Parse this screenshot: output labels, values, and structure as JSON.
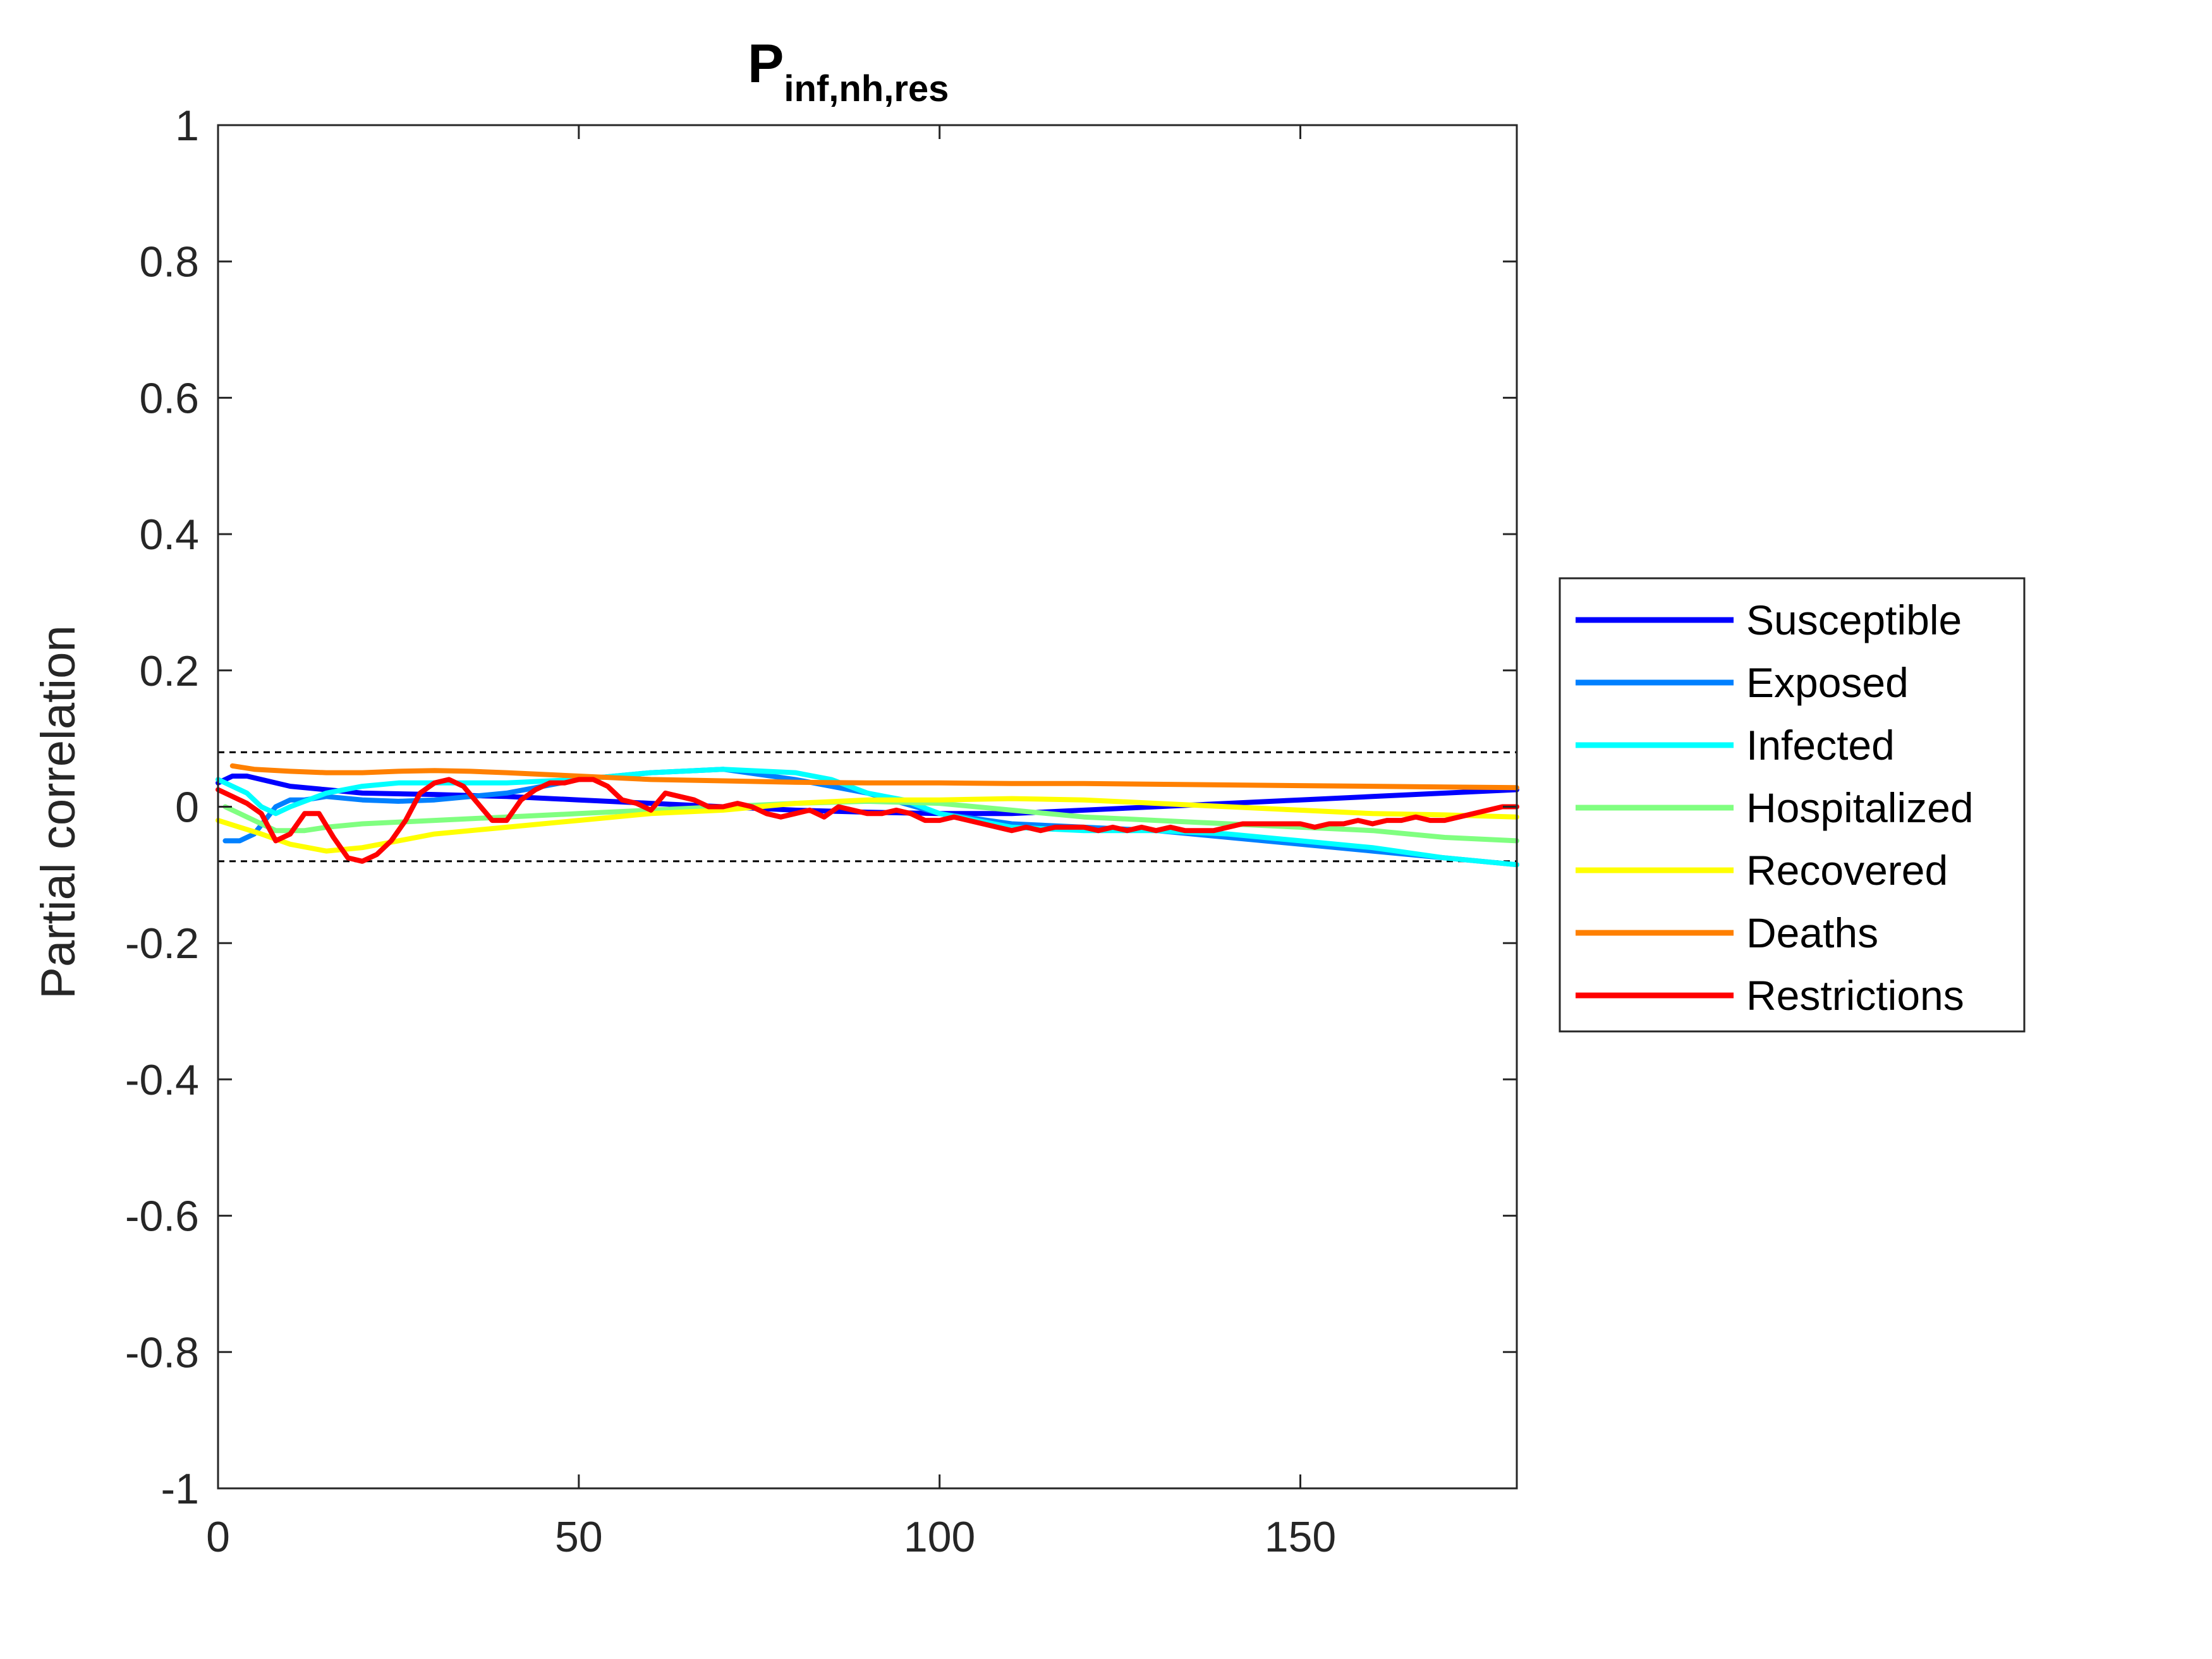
{
  "chart_data": {
    "type": "line",
    "title": "P",
    "title_subscript": "inf,nh,res",
    "xlabel": "",
    "ylabel": "Partial correlation",
    "xlim": [
      0,
      180
    ],
    "ylim": [
      -1,
      1
    ],
    "x_ticks": [
      "0",
      "50",
      "100",
      "150"
    ],
    "x_tick_values": [
      0,
      50,
      100,
      150
    ],
    "y_ticks": [
      "-1",
      "-0.8",
      "-0.6",
      "-0.4",
      "-0.2",
      "0",
      "0.2",
      "0.4",
      "0.6",
      "0.8",
      "1"
    ],
    "y_tick_values": [
      -1,
      -0.8,
      -0.6,
      -0.4,
      -0.2,
      0,
      0.2,
      0.4,
      0.6,
      0.8,
      1
    ],
    "reference_lines": [
      0.08,
      -0.08
    ],
    "grid": false,
    "legend_position": "right",
    "series": [
      {
        "name": "Susceptible",
        "color": "#0000ff",
        "points": [
          [
            0,
            0.035
          ],
          [
            2,
            0.045
          ],
          [
            4,
            0.045
          ],
          [
            6,
            0.04
          ],
          [
            10,
            0.03
          ],
          [
            15,
            0.025
          ],
          [
            20,
            0.02
          ],
          [
            30,
            0.018
          ],
          [
            40,
            0.015
          ],
          [
            50,
            0.01
          ],
          [
            60,
            0.005
          ],
          [
            70,
            0
          ],
          [
            80,
            -0.005
          ],
          [
            90,
            -0.008
          ],
          [
            100,
            -0.01
          ],
          [
            110,
            -0.01
          ],
          [
            120,
            -0.005
          ],
          [
            130,
            0
          ],
          [
            140,
            0.005
          ],
          [
            150,
            0.01
          ],
          [
            160,
            0.015
          ],
          [
            170,
            0.02
          ],
          [
            180,
            0.025
          ]
        ]
      },
      {
        "name": "Exposed",
        "color": "#0080ff",
        "points": [
          [
            1,
            -0.05
          ],
          [
            3,
            -0.05
          ],
          [
            5,
            -0.04
          ],
          [
            8,
            0
          ],
          [
            10,
            0.01
          ],
          [
            12,
            0.01
          ],
          [
            15,
            0.015
          ],
          [
            20,
            0.01
          ],
          [
            25,
            0.008
          ],
          [
            30,
            0.01
          ],
          [
            40,
            0.02
          ],
          [
            50,
            0.04
          ],
          [
            60,
            0.05
          ],
          [
            70,
            0.055
          ],
          [
            80,
            0.04
          ],
          [
            90,
            0.02
          ],
          [
            100,
            -0.01
          ],
          [
            110,
            -0.025
          ],
          [
            120,
            -0.03
          ],
          [
            130,
            -0.035
          ],
          [
            140,
            -0.045
          ],
          [
            150,
            -0.055
          ],
          [
            160,
            -0.065
          ],
          [
            170,
            -0.075
          ],
          [
            180,
            -0.085
          ]
        ]
      },
      {
        "name": "Infected",
        "color": "#00ffff",
        "points": [
          [
            0,
            0.04
          ],
          [
            2,
            0.03
          ],
          [
            4,
            0.02
          ],
          [
            6,
            0
          ],
          [
            8,
            -0.01
          ],
          [
            10,
            0
          ],
          [
            15,
            0.02
          ],
          [
            20,
            0.03
          ],
          [
            25,
            0.035
          ],
          [
            30,
            0.035
          ],
          [
            40,
            0.035
          ],
          [
            50,
            0.04
          ],
          [
            60,
            0.05
          ],
          [
            70,
            0.055
          ],
          [
            80,
            0.05
          ],
          [
            85,
            0.04
          ],
          [
            90,
            0.02
          ],
          [
            95,
            0.01
          ],
          [
            100,
            -0.01
          ],
          [
            110,
            -0.03
          ],
          [
            120,
            -0.035
          ],
          [
            130,
            -0.035
          ],
          [
            140,
            -0.04
          ],
          [
            150,
            -0.05
          ],
          [
            160,
            -0.06
          ],
          [
            170,
            -0.075
          ],
          [
            180,
            -0.085
          ]
        ]
      },
      {
        "name": "Hospitalized",
        "color": "#80ff80",
        "points": [
          [
            1,
            0
          ],
          [
            3,
            -0.01
          ],
          [
            5,
            -0.02
          ],
          [
            8,
            -0.035
          ],
          [
            12,
            -0.035
          ],
          [
            15,
            -0.03
          ],
          [
            20,
            -0.025
          ],
          [
            30,
            -0.02
          ],
          [
            40,
            -0.015
          ],
          [
            50,
            -0.01
          ],
          [
            60,
            -0.005
          ],
          [
            70,
            0
          ],
          [
            80,
            0.005
          ],
          [
            90,
            0.008
          ],
          [
            100,
            0.005
          ],
          [
            110,
            -0.005
          ],
          [
            120,
            -0.015
          ],
          [
            130,
            -0.02
          ],
          [
            140,
            -0.025
          ],
          [
            150,
            -0.03
          ],
          [
            160,
            -0.035
          ],
          [
            170,
            -0.045
          ],
          [
            180,
            -0.05
          ]
        ]
      },
      {
        "name": "Recovered",
        "color": "#ffff00",
        "points": [
          [
            0,
            -0.02
          ],
          [
            3,
            -0.03
          ],
          [
            6,
            -0.04
          ],
          [
            10,
            -0.055
          ],
          [
            15,
            -0.065
          ],
          [
            20,
            -0.06
          ],
          [
            25,
            -0.05
          ],
          [
            30,
            -0.04
          ],
          [
            40,
            -0.03
          ],
          [
            50,
            -0.02
          ],
          [
            60,
            -0.01
          ],
          [
            70,
            -0.005
          ],
          [
            80,
            0.005
          ],
          [
            90,
            0.01
          ],
          [
            100,
            0.01
          ],
          [
            110,
            0.012
          ],
          [
            120,
            0.01
          ],
          [
            130,
            0.005
          ],
          [
            140,
            0
          ],
          [
            150,
            -0.005
          ],
          [
            160,
            -0.01
          ],
          [
            170,
            -0.012
          ],
          [
            180,
            -0.015
          ]
        ]
      },
      {
        "name": "Deaths",
        "color": "#ff8000",
        "points": [
          [
            2,
            0.06
          ],
          [
            5,
            0.055
          ],
          [
            10,
            0.052
          ],
          [
            15,
            0.05
          ],
          [
            20,
            0.05
          ],
          [
            25,
            0.052
          ],
          [
            30,
            0.053
          ],
          [
            35,
            0.052
          ],
          [
            40,
            0.05
          ],
          [
            50,
            0.045
          ],
          [
            60,
            0.04
          ],
          [
            70,
            0.038
          ],
          [
            80,
            0.036
          ],
          [
            90,
            0.035
          ],
          [
            100,
            0.035
          ],
          [
            110,
            0.034
          ],
          [
            120,
            0.034
          ],
          [
            130,
            0.033
          ],
          [
            140,
            0.032
          ],
          [
            150,
            0.031
          ],
          [
            160,
            0.03
          ],
          [
            170,
            0.029
          ],
          [
            180,
            0.028
          ]
        ]
      },
      {
        "name": "Restrictions",
        "color": "#ff0000",
        "points": [
          [
            0,
            0.025
          ],
          [
            2,
            0.015
          ],
          [
            4,
            0.005
          ],
          [
            6,
            -0.01
          ],
          [
            8,
            -0.05
          ],
          [
            10,
            -0.04
          ],
          [
            12,
            -0.01
          ],
          [
            14,
            -0.01
          ],
          [
            16,
            -0.045
          ],
          [
            18,
            -0.075
          ],
          [
            20,
            -0.08
          ],
          [
            22,
            -0.07
          ],
          [
            24,
            -0.05
          ],
          [
            26,
            -0.02
          ],
          [
            28,
            0.02
          ],
          [
            30,
            0.035
          ],
          [
            32,
            0.04
          ],
          [
            34,
            0.03
          ],
          [
            36,
            0.005
          ],
          [
            38,
            -0.02
          ],
          [
            40,
            -0.02
          ],
          [
            42,
            0.01
          ],
          [
            44,
            0.025
          ],
          [
            46,
            0.035
          ],
          [
            48,
            0.035
          ],
          [
            50,
            0.04
          ],
          [
            52,
            0.04
          ],
          [
            54,
            0.03
          ],
          [
            56,
            0.01
          ],
          [
            58,
            0.005
          ],
          [
            60,
            -0.005
          ],
          [
            62,
            0.02
          ],
          [
            64,
            0.015
          ],
          [
            66,
            0.01
          ],
          [
            68,
            0
          ],
          [
            70,
            0
          ],
          [
            72,
            0.005
          ],
          [
            74,
            0
          ],
          [
            76,
            -0.01
          ],
          [
            78,
            -0.015
          ],
          [
            80,
            -0.01
          ],
          [
            82,
            -0.005
          ],
          [
            84,
            -0.015
          ],
          [
            86,
            0
          ],
          [
            88,
            -0.005
          ],
          [
            90,
            -0.01
          ],
          [
            92,
            -0.01
          ],
          [
            94,
            -0.005
          ],
          [
            96,
            -0.01
          ],
          [
            98,
            -0.02
          ],
          [
            100,
            -0.02
          ],
          [
            102,
            -0.015
          ],
          [
            104,
            -0.02
          ],
          [
            106,
            -0.025
          ],
          [
            108,
            -0.03
          ],
          [
            110,
            -0.035
          ],
          [
            112,
            -0.03
          ],
          [
            114,
            -0.035
          ],
          [
            116,
            -0.03
          ],
          [
            118,
            -0.03
          ],
          [
            120,
            -0.03
          ],
          [
            122,
            -0.035
          ],
          [
            124,
            -0.03
          ],
          [
            126,
            -0.035
          ],
          [
            128,
            -0.03
          ],
          [
            130,
            -0.035
          ],
          [
            132,
            -0.03
          ],
          [
            134,
            -0.035
          ],
          [
            136,
            -0.035
          ],
          [
            138,
            -0.035
          ],
          [
            140,
            -0.03
          ],
          [
            142,
            -0.025
          ],
          [
            144,
            -0.025
          ],
          [
            146,
            -0.025
          ],
          [
            148,
            -0.025
          ],
          [
            150,
            -0.025
          ],
          [
            152,
            -0.03
          ],
          [
            154,
            -0.025
          ],
          [
            156,
            -0.025
          ],
          [
            158,
            -0.02
          ],
          [
            160,
            -0.025
          ],
          [
            162,
            -0.02
          ],
          [
            164,
            -0.02
          ],
          [
            166,
            -0.015
          ],
          [
            168,
            -0.02
          ],
          [
            170,
            -0.02
          ],
          [
            172,
            -0.015
          ],
          [
            174,
            -0.01
          ],
          [
            176,
            -0.005
          ],
          [
            178,
            0
          ],
          [
            180,
            0
          ]
        ]
      }
    ]
  }
}
